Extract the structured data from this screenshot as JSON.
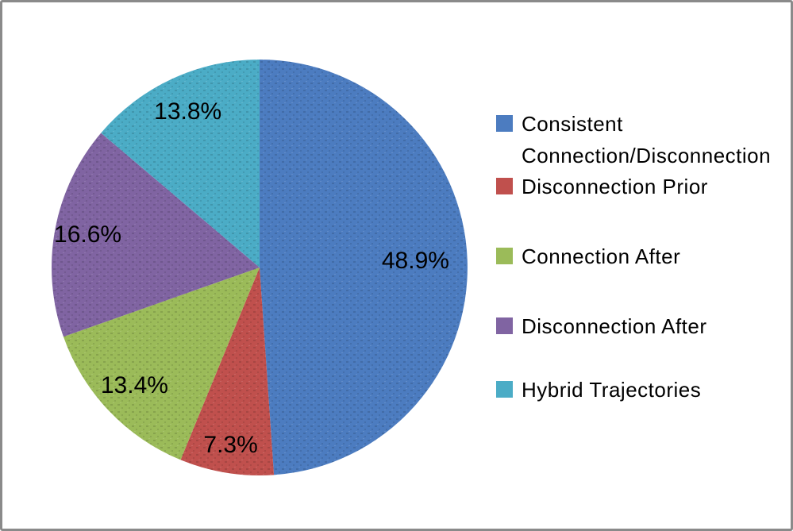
{
  "chart_data": {
    "type": "pie",
    "title": "",
    "legend_position": "right",
    "start_angle_deg": 0,
    "direction": "clockwise",
    "label_color": "#000000",
    "series": [
      {
        "label": "Consistent Connection/Disconnection",
        "value": 48.9,
        "display": "48.9%",
        "color": "#4C7CC0",
        "label_radius_frac": 0.75
      },
      {
        "label": "Disconnection Prior",
        "value": 7.3,
        "display": "7.3%",
        "color": "#C0504D",
        "label_radius_frac": 0.87
      },
      {
        "label": "Connection After",
        "value": 13.4,
        "display": "13.4%",
        "color": "#9BBB59",
        "label_radius_frac": 0.83
      },
      {
        "label": "Disconnection After",
        "value": 16.6,
        "display": "16.6%",
        "color": "#8064A2",
        "label_radius_frac": 0.84
      },
      {
        "label": "Hybrid Trajectories",
        "value": 13.8,
        "display": "13.8%",
        "color": "#4BACC6",
        "label_radius_frac": 0.82
      }
    ]
  },
  "frame": {
    "border_color": "#8a8a8a",
    "background": "#ffffff"
  }
}
